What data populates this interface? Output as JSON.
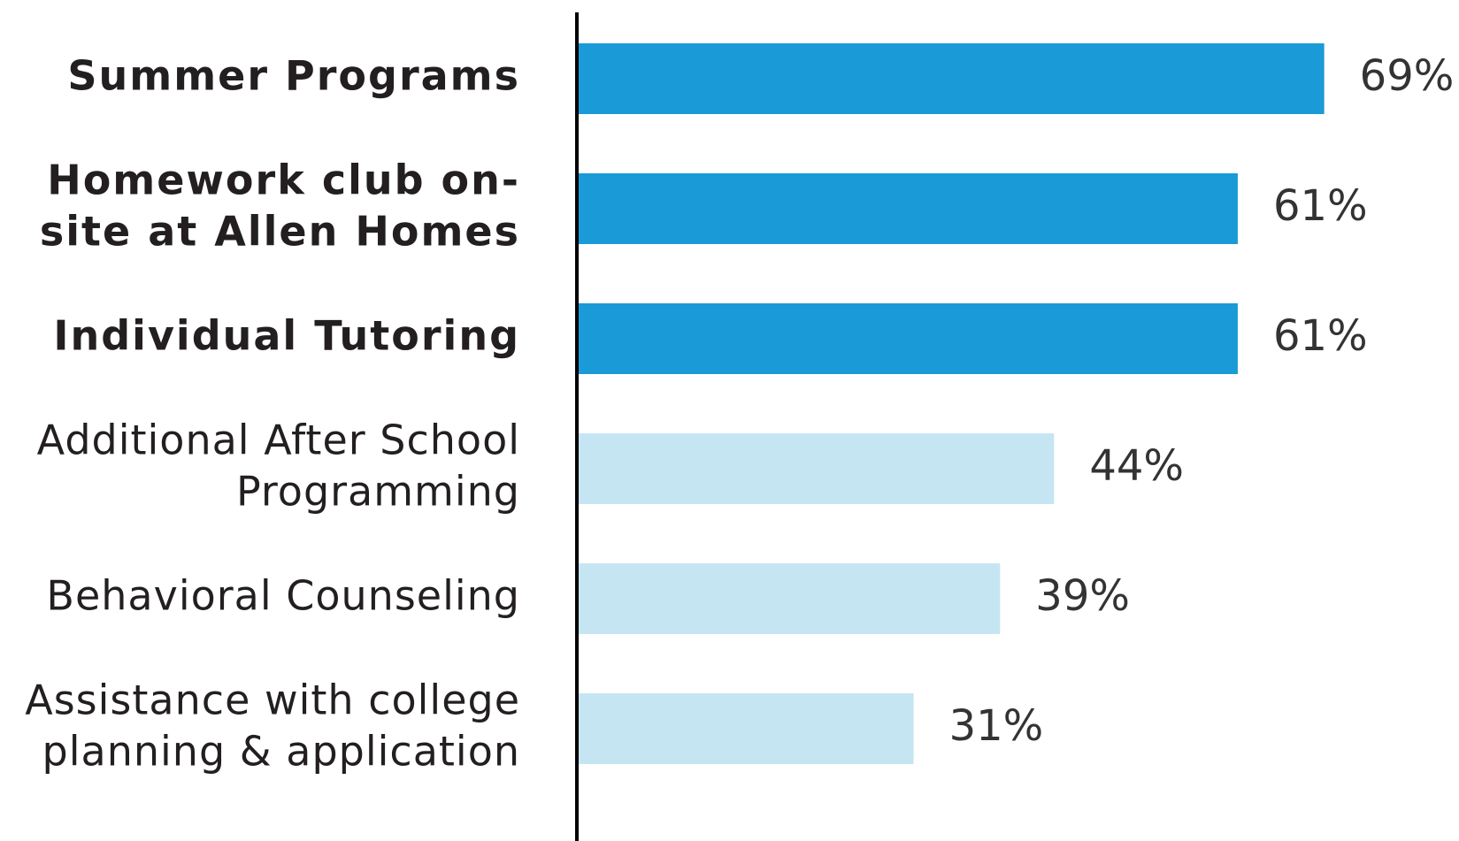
{
  "chart_data": {
    "type": "bar",
    "orientation": "horizontal",
    "categories": [
      [
        "Summer Programs"
      ],
      [
        "Homework club on-",
        "site at Allen Homes"
      ],
      [
        "Individual Tutoring"
      ],
      [
        "Additional After School",
        "Programming"
      ],
      [
        "Behavioral Counseling"
      ],
      [
        "Assistance with college",
        "planning & application"
      ]
    ],
    "values": [
      69,
      61,
      61,
      44,
      39,
      31
    ],
    "value_labels": [
      "69%",
      "61%",
      "61%",
      "44%",
      "39%",
      "31%"
    ],
    "colors": [
      "#1a9ad6",
      "#1a9ad6",
      "#1a9ad6",
      "#c6e5f3",
      "#c6e5f3",
      "#c6e5f3"
    ],
    "label_weights": [
      "bold",
      "bold",
      "bold",
      "normal",
      "normal",
      "normal"
    ],
    "xlim": [
      0,
      80
    ]
  }
}
